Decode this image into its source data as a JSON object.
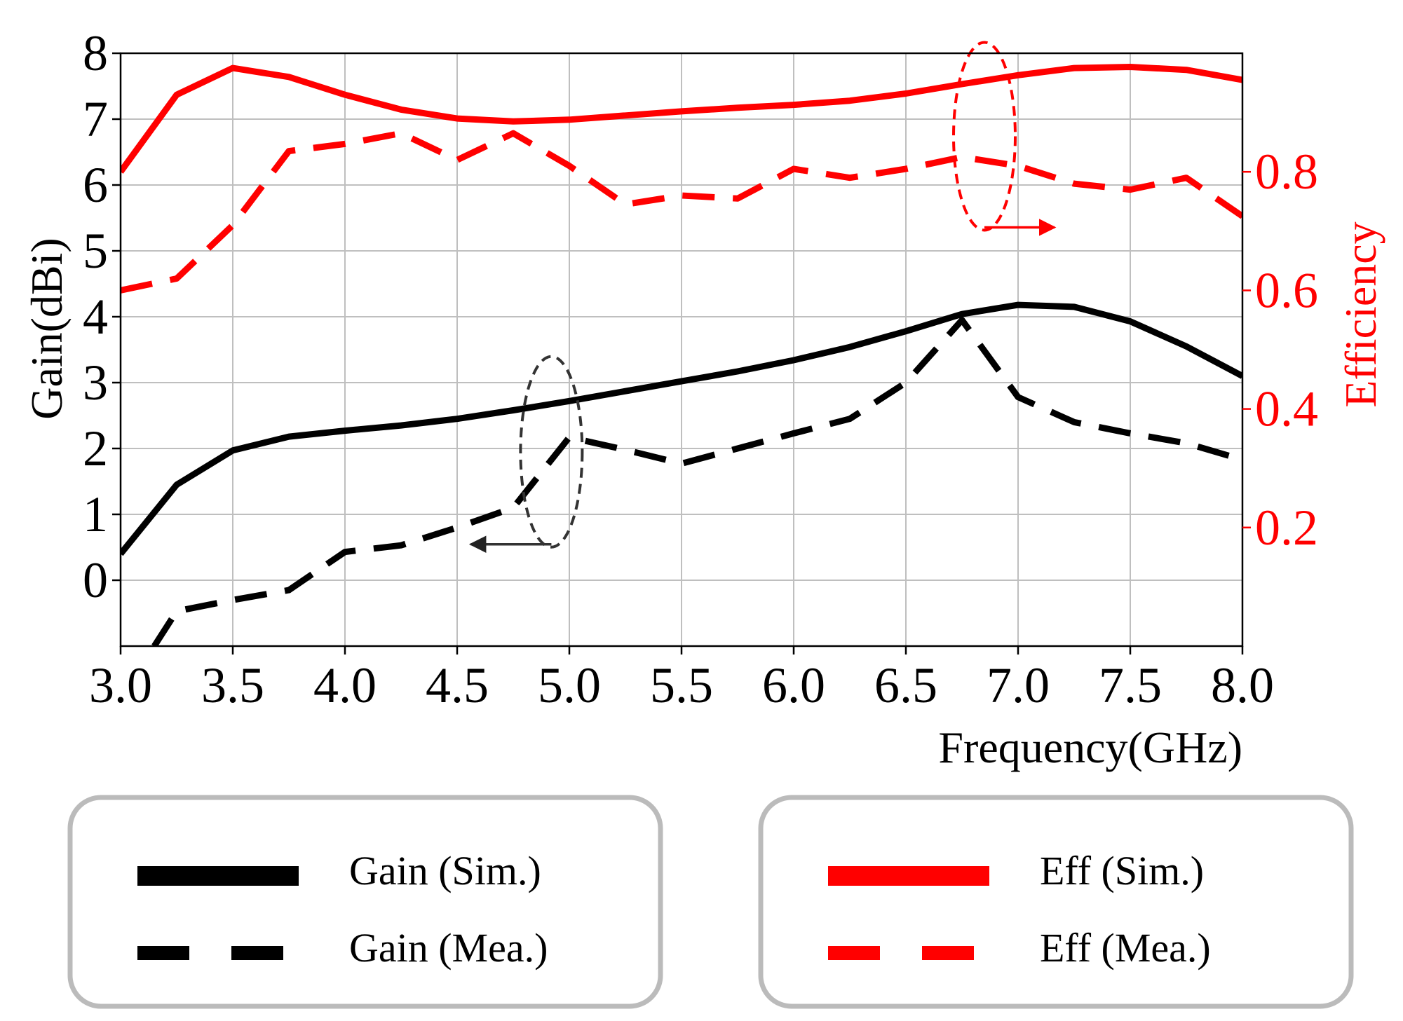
{
  "chart_data": {
    "type": "line",
    "title": "",
    "xlabel": "Frequency(GHz)",
    "ylabel": "Gain(dBi)",
    "y2label": "Efficiency",
    "xlim": [
      3.0,
      8.0
    ],
    "ylim": [
      -1,
      8
    ],
    "y2lim": [
      0.0,
      1.0
    ],
    "grid": true,
    "legend_position": "bottom",
    "x_ticks": [
      3.0,
      3.5,
      4.0,
      4.5,
      5.0,
      5.5,
      6.0,
      6.5,
      7.0,
      7.5,
      8.0
    ],
    "x_tick_labels": [
      "3.0",
      "3.5",
      "4.0",
      "4.5",
      "5.0",
      "5.5",
      "6.0",
      "6.5",
      "7.0",
      "7.5",
      "8.0"
    ],
    "y_ticks": [
      0,
      1,
      2,
      3,
      4,
      5,
      6,
      7,
      8
    ],
    "y_tick_labels": [
      "0",
      "1",
      "2",
      "3",
      "4",
      "5",
      "6",
      "7",
      "8"
    ],
    "y2_ticks": [
      0.2,
      0.4,
      0.6,
      0.8
    ],
    "y2_tick_labels": [
      "0.2",
      "0.4",
      "0.6",
      "0.8"
    ],
    "series": [
      {
        "name": "Gain (Sim.)",
        "axis": "left",
        "color": "#000000",
        "style": "solid",
        "x": [
          3.0,
          3.25,
          3.5,
          3.75,
          4.0,
          4.25,
          4.5,
          4.75,
          5.0,
          5.25,
          5.5,
          5.75,
          6.0,
          6.25,
          6.5,
          6.75,
          7.0,
          7.25,
          7.5,
          7.75,
          8.0
        ],
        "y": [
          0.4,
          1.45,
          1.97,
          2.18,
          2.27,
          2.35,
          2.45,
          2.58,
          2.72,
          2.87,
          3.02,
          3.17,
          3.34,
          3.54,
          3.78,
          4.04,
          4.18,
          4.15,
          3.93,
          3.55,
          3.1
        ]
      },
      {
        "name": "Gain (Mea.)",
        "axis": "left",
        "color": "#000000",
        "style": "dashed",
        "x": [
          3.15,
          3.25,
          3.5,
          3.75,
          4.0,
          4.25,
          4.5,
          4.75,
          5.0,
          5.25,
          5.5,
          5.75,
          6.0,
          6.25,
          6.5,
          6.75,
          7.0,
          7.25,
          7.5,
          7.75,
          8.0
        ],
        "y": [
          -1.0,
          -0.47,
          -0.3,
          -0.15,
          0.43,
          0.53,
          0.8,
          1.1,
          2.17,
          1.98,
          1.77,
          2.0,
          2.23,
          2.45,
          3.0,
          3.95,
          2.78,
          2.4,
          2.23,
          2.08,
          1.83
        ]
      },
      {
        "name": "Eff (Sim.)",
        "axis": "right",
        "color": "#ff0000",
        "style": "solid",
        "x": [
          3.0,
          3.25,
          3.5,
          3.75,
          4.0,
          4.25,
          4.5,
          4.75,
          5.0,
          5.25,
          5.5,
          5.75,
          6.0,
          6.25,
          6.5,
          6.75,
          7.0,
          7.25,
          7.5,
          7.75,
          8.0
        ],
        "y": [
          0.8,
          0.93,
          0.975,
          0.96,
          0.93,
          0.905,
          0.89,
          0.885,
          0.888,
          0.895,
          0.902,
          0.908,
          0.913,
          0.92,
          0.932,
          0.948,
          0.963,
          0.975,
          0.977,
          0.972,
          0.955
        ]
      },
      {
        "name": "Eff (Mea.)",
        "axis": "right",
        "color": "#ff0000",
        "style": "dashed",
        "x": [
          3.0,
          3.25,
          3.5,
          3.75,
          4.0,
          4.25,
          4.5,
          4.75,
          5.0,
          5.25,
          5.5,
          5.75,
          6.0,
          6.25,
          6.5,
          6.75,
          7.0,
          7.25,
          7.5,
          7.75,
          8.0
        ],
        "y": [
          0.6,
          0.62,
          0.71,
          0.835,
          0.847,
          0.865,
          0.82,
          0.865,
          0.81,
          0.745,
          0.76,
          0.755,
          0.805,
          0.79,
          0.805,
          0.825,
          0.81,
          0.78,
          0.77,
          0.79,
          0.725
        ]
      }
    ],
    "annotations": [
      {
        "target": "left-axis",
        "series": [
          "Gain (Sim.)",
          "Gain (Mea.)"
        ],
        "center_x": 4.92,
        "center_y": 1.95,
        "arrow": "left"
      },
      {
        "target": "right-axis",
        "series": [
          "Eff (Sim.)",
          "Eff (Mea.)"
        ],
        "center_x": 6.85,
        "center_y": 0.86,
        "arrow": "right"
      }
    ],
    "legend": {
      "groups": [
        [
          "Gain (Sim.)",
          "Gain (Mea.)"
        ],
        [
          "Eff (Sim.)",
          "Eff (Mea.)"
        ]
      ]
    }
  }
}
